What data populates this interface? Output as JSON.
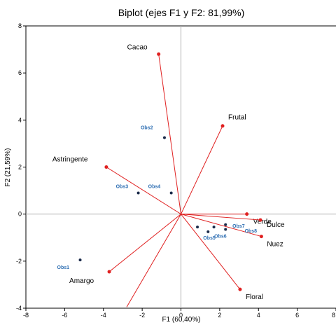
{
  "chart_data": {
    "type": "scatter",
    "title": "Biplot (ejes F1 y F2: 81,99%)",
    "xlabel": "F1 (60,40%)",
    "ylabel": "F2 (21,59%)",
    "xlim": [
      -8,
      8
    ],
    "ylim": [
      -4,
      8
    ],
    "xticks": [
      "-8",
      "-6",
      "-4",
      "-2",
      "0",
      "2",
      "4",
      "6",
      "8"
    ],
    "yticks": [
      "-4",
      "-2",
      "0",
      "2",
      "4",
      "6",
      "8"
    ],
    "grid": false,
    "colors": {
      "variables": "#e02020",
      "observations": "#1a2a4a",
      "obs_labels": "#2f6fb3"
    },
    "variables": [
      {
        "name": "Cacao",
        "x": -1.15,
        "y": 6.8
      },
      {
        "name": "Frutal",
        "x": 2.15,
        "y": 3.75
      },
      {
        "name": "Astringente",
        "x": -3.85,
        "y": 2.0
      },
      {
        "name": "Verde",
        "x": 3.4,
        "y": 0.0
      },
      {
        "name": "Dulce",
        "x": 4.1,
        "y": -0.25
      },
      {
        "name": "Nuez",
        "x": 4.15,
        "y": -0.95
      },
      {
        "name": "Floral",
        "x": 3.05,
        "y": -3.2
      },
      {
        "name": "Amargo",
        "x": -3.7,
        "y": -2.45
      },
      {
        "name": "",
        "x": -2.8,
        "y": -3.95
      }
    ],
    "observations": [
      {
        "name": "Obs1",
        "x": -5.2,
        "y": -1.95
      },
      {
        "name": "Obs2",
        "x": -0.85,
        "y": 3.25
      },
      {
        "name": "Obs3",
        "x": -2.2,
        "y": 0.9
      },
      {
        "name": "Obs4",
        "x": -0.5,
        "y": 0.9
      },
      {
        "name": "Obs5",
        "x": 1.4,
        "y": -0.75
      },
      {
        "name": "Obs6",
        "x": 2.3,
        "y": -0.65
      },
      {
        "name": "Obs7",
        "x": 2.3,
        "y": -0.45
      },
      {
        "name": "Obs8",
        "x": 1.7,
        "y": -0.55
      },
      {
        "name": "",
        "x": 0.85,
        "y": -0.55
      }
    ]
  }
}
